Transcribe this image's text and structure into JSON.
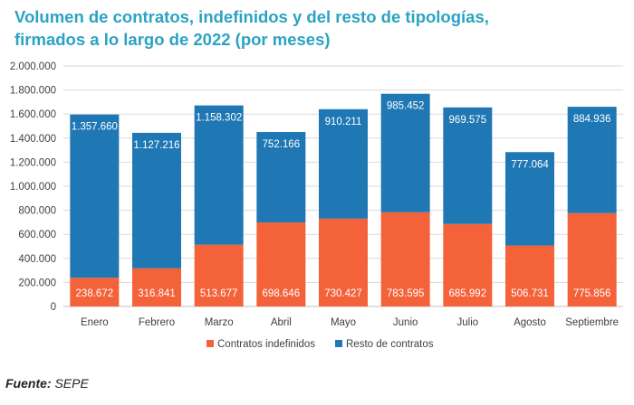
{
  "title_line1": "Volumen de contratos, indefinidos y del resto de tipologías,",
  "title_line2": "firmados a lo largo de 2022 (por meses)",
  "source_label": "Fuente:",
  "source_value": "SEPE",
  "chart_data": {
    "type": "bar",
    "stacked": true,
    "categories": [
      "Enero",
      "Febrero",
      "Marzo",
      "Abril",
      "Mayo",
      "Junio",
      "Julio",
      "Agosto",
      "Septiembre"
    ],
    "series": [
      {
        "name": "Contratos indefinidos",
        "color": "#f4623a",
        "values": [
          238672,
          316841,
          513677,
          698646,
          730427,
          783595,
          685992,
          506731,
          775856
        ],
        "labels": [
          "238.672",
          "316.841",
          "513.677",
          "698.646",
          "730.427",
          "783.595",
          "685.992",
          "506.731",
          "775.856"
        ]
      },
      {
        "name": "Resto de contratos",
        "color": "#1f77b4",
        "values": [
          1357660,
          1127216,
          1158302,
          752166,
          910211,
          985452,
          969575,
          777064,
          884936
        ],
        "labels": [
          "1.357.660",
          "1.127.216",
          "1.158.302",
          "752.166",
          "910.211",
          "985.452",
          "969.575",
          "777.064",
          "884.936"
        ]
      }
    ],
    "ylim": [
      0,
      2000000
    ],
    "ytick_values": [
      0,
      200000,
      400000,
      600000,
      800000,
      1000000,
      1200000,
      1400000,
      1600000,
      1800000,
      2000000
    ],
    "ytick_labels": [
      "0",
      "200.000",
      "400.000",
      "600.000",
      "800.000",
      "1.000.000",
      "1.200.000",
      "1.400.000",
      "1.600.000",
      "1.800.000",
      "2.000.000"
    ],
    "grid": true,
    "legend_position": "bottom"
  }
}
